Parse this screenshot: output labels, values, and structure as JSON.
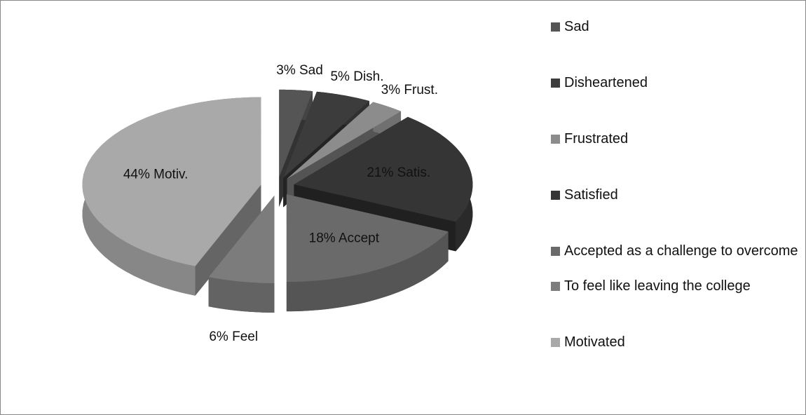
{
  "chart_data": {
    "type": "pie",
    "categories": [
      "Sad",
      "Disheartened",
      "Frustrated",
      "Satisfied",
      "Accepted as a challenge to overcome",
      "To feel like leaving the college",
      "Motivated"
    ],
    "values": [
      3,
      5,
      3,
      21,
      18,
      6,
      44
    ],
    "value_labels": [
      "3% Sad",
      "5% Dish.",
      "3% Frust.",
      "21% Satis.",
      "18% Accept",
      "6% Feel",
      "44% Motiv."
    ],
    "colors": [
      "#555555",
      "#3c3c3c",
      "#8c8c8c",
      "#353535",
      "#6a6a6a",
      "#7c7c7c",
      "#a9a9a9"
    ],
    "legend": "right"
  }
}
